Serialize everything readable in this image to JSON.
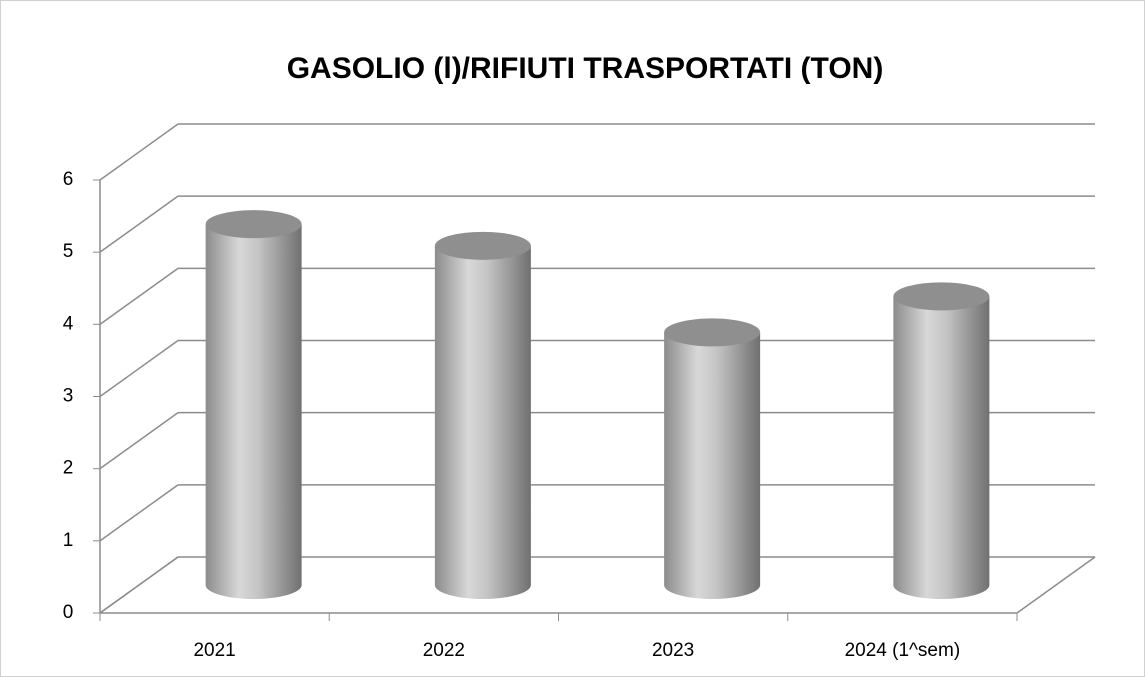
{
  "chart_data": {
    "type": "bar",
    "title": "GASOLIO (l)/RIFIUTI TRASPORTATI (TON)",
    "categories": [
      "2021",
      "2022",
      "2023",
      "2024 (1^sem)"
    ],
    "values": [
      5.0,
      4.7,
      3.5,
      4.0
    ],
    "color": "#b0b0b0",
    "ylim": [
      0,
      6
    ],
    "yticks": [
      0,
      1,
      2,
      3,
      4,
      5,
      6
    ],
    "grid": true
  }
}
